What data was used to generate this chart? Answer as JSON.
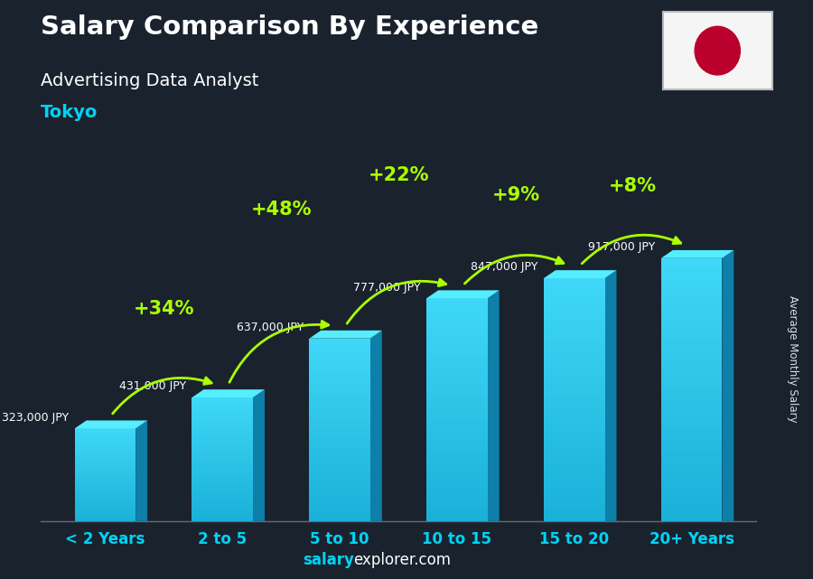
{
  "title": "Salary Comparison By Experience",
  "subtitle": "Advertising Data Analyst",
  "city": "Tokyo",
  "categories": [
    "< 2 Years",
    "2 to 5",
    "5 to 10",
    "10 to 15",
    "15 to 20",
    "20+ Years"
  ],
  "values": [
    323000,
    431000,
    637000,
    777000,
    847000,
    917000
  ],
  "value_labels": [
    "323,000 JPY",
    "431,000 JPY",
    "637,000 JPY",
    "777,000 JPY",
    "847,000 JPY",
    "917,000 JPY"
  ],
  "pct_changes": [
    "+34%",
    "+48%",
    "+22%",
    "+9%",
    "+8%"
  ],
  "bar_front_bottom": "#1ab0d8",
  "bar_front_top": "#40d8f8",
  "bar_side_color": "#0e7fa8",
  "bar_top_color": "#55eeff",
  "bar_top_edge": "#00ccee",
  "bg_overlay": [
    0.1,
    0.13,
    0.18,
    0.72
  ],
  "title_color": "#ffffff",
  "subtitle_color": "#ffffff",
  "city_color": "#00d4f5",
  "value_color": "#ffffff",
  "pct_color": "#aaff00",
  "arrow_color": "#aaff00",
  "ylabel": "Average Monthly Salary",
  "footer_salary_color": "#00d4f5",
  "footer_rest_color": "#ffffff",
  "ylim": [
    0,
    1050000
  ],
  "flag_bg": "#f5f5f5",
  "flag_circle": "#BC002D"
}
